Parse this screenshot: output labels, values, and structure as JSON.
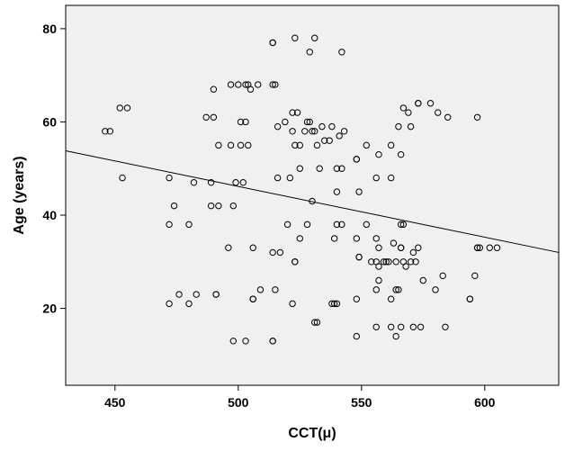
{
  "chart_data": {
    "type": "scatter",
    "title": "",
    "xlabel": "CCT(μ)",
    "ylabel": "Age (years)",
    "xlim": [
      430,
      630
    ],
    "ylim": [
      3.5,
      85
    ],
    "xticks": [
      "450",
      "500",
      "550",
      "600"
    ],
    "yticks": [
      "20",
      "40",
      "60",
      "80"
    ],
    "grid": false,
    "plot_background": "#f0f0f0",
    "marker_color": "#000000",
    "fit_line": {
      "x": [
        430,
        630
      ],
      "y": [
        53.8,
        32.0
      ]
    },
    "points": [
      [
        446,
        58
      ],
      [
        448,
        58
      ],
      [
        452,
        63
      ],
      [
        455,
        63
      ],
      [
        453,
        48
      ],
      [
        472,
        48
      ],
      [
        474,
        42
      ],
      [
        472,
        38
      ],
      [
        476,
        23
      ],
      [
        472,
        21
      ],
      [
        480,
        38
      ],
      [
        482,
        47
      ],
      [
        480,
        21
      ],
      [
        483,
        23
      ],
      [
        487,
        61
      ],
      [
        490,
        61
      ],
      [
        490,
        67
      ],
      [
        489,
        47
      ],
      [
        489,
        42
      ],
      [
        492,
        42
      ],
      [
        491,
        23
      ],
      [
        491,
        23
      ],
      [
        492,
        55
      ],
      [
        497,
        68
      ],
      [
        500,
        68
      ],
      [
        503,
        68
      ],
      [
        497,
        55
      ],
      [
        501,
        55
      ],
      [
        504,
        55
      ],
      [
        498,
        42
      ],
      [
        499,
        47
      ],
      [
        502,
        47
      ],
      [
        496,
        33
      ],
      [
        498,
        13
      ],
      [
        503,
        13
      ],
      [
        501,
        60
      ],
      [
        503,
        60
      ],
      [
        505,
        67
      ],
      [
        504,
        68
      ],
      [
        508,
        68
      ],
      [
        506,
        22
      ],
      [
        506,
        22
      ],
      [
        506,
        33
      ],
      [
        509,
        24
      ],
      [
        514,
        77
      ],
      [
        514,
        77
      ],
      [
        514,
        68
      ],
      [
        515,
        68
      ],
      [
        514,
        32
      ],
      [
        517,
        32
      ],
      [
        515,
        24
      ],
      [
        514,
        13
      ],
      [
        514,
        13
      ],
      [
        516,
        59
      ],
      [
        519,
        60
      ],
      [
        516,
        48
      ],
      [
        520,
        38
      ],
      [
        523,
        78
      ],
      [
        522,
        62
      ],
      [
        524,
        62
      ],
      [
        522,
        58
      ],
      [
        523,
        55
      ],
      [
        525,
        55
      ],
      [
        521,
        48
      ],
      [
        523,
        30
      ],
      [
        523,
        30
      ],
      [
        525,
        35
      ],
      [
        522,
        21
      ],
      [
        528,
        60
      ],
      [
        529,
        60
      ],
      [
        527,
        58
      ],
      [
        530,
        58
      ],
      [
        531,
        58
      ],
      [
        529,
        75
      ],
      [
        531,
        78
      ],
      [
        528,
        38
      ],
      [
        530,
        43
      ],
      [
        531,
        17
      ],
      [
        532,
        17
      ],
      [
        525,
        50
      ],
      [
        532,
        55
      ],
      [
        533,
        50
      ],
      [
        534,
        59
      ],
      [
        535,
        56
      ],
      [
        538,
        59
      ],
      [
        537,
        56
      ],
      [
        538,
        21
      ],
      [
        539,
        21
      ],
      [
        540,
        21
      ],
      [
        540,
        45
      ],
      [
        540,
        38
      ],
      [
        539,
        35
      ],
      [
        540,
        50
      ],
      [
        542,
        50
      ],
      [
        542,
        75
      ],
      [
        543,
        58
      ],
      [
        542,
        38
      ],
      [
        541,
        57
      ],
      [
        548,
        52
      ],
      [
        548,
        52
      ],
      [
        549,
        45
      ],
      [
        548,
        35
      ],
      [
        549,
        31
      ],
      [
        549,
        31
      ],
      [
        548,
        22
      ],
      [
        548,
        14
      ],
      [
        552,
        55
      ],
      [
        552,
        38
      ],
      [
        554,
        30
      ],
      [
        556,
        30
      ],
      [
        557,
        29
      ],
      [
        557,
        26
      ],
      [
        556,
        24
      ],
      [
        556,
        16
      ],
      [
        557,
        53
      ],
      [
        556,
        48
      ],
      [
        556,
        35
      ],
      [
        557,
        33
      ],
      [
        559,
        30
      ],
      [
        560,
        30
      ],
      [
        561,
        30
      ],
      [
        562,
        22
      ],
      [
        562,
        16
      ],
      [
        562,
        55
      ],
      [
        562,
        48
      ],
      [
        563,
        34
      ],
      [
        564,
        30
      ],
      [
        564,
        24
      ],
      [
        565,
        24
      ],
      [
        564,
        14
      ],
      [
        566,
        16
      ],
      [
        565,
        59
      ],
      [
        566,
        53
      ],
      [
        566,
        38
      ],
      [
        567,
        38
      ],
      [
        566,
        33
      ],
      [
        566,
        33
      ],
      [
        567,
        63
      ],
      [
        567,
        30
      ],
      [
        568,
        29
      ],
      [
        569,
        62
      ],
      [
        570,
        59
      ],
      [
        570,
        30
      ],
      [
        571,
        16
      ],
      [
        571,
        32
      ],
      [
        572,
        30
      ],
      [
        573,
        64
      ],
      [
        573,
        64
      ],
      [
        573,
        33
      ],
      [
        574,
        16
      ],
      [
        575,
        26
      ],
      [
        578,
        64
      ],
      [
        580,
        24
      ],
      [
        581,
        62
      ],
      [
        583,
        27
      ],
      [
        584,
        16
      ],
      [
        585,
        61
      ],
      [
        594,
        22
      ],
      [
        594,
        22
      ],
      [
        596,
        27
      ],
      [
        597,
        33
      ],
      [
        597,
        33
      ],
      [
        598,
        33
      ],
      [
        597,
        61
      ],
      [
        602,
        33
      ],
      [
        605,
        33
      ]
    ]
  }
}
